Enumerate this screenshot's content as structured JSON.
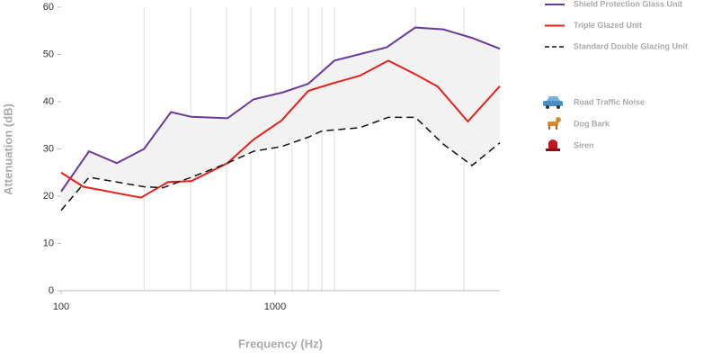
{
  "chart_data": {
    "type": "line",
    "xlabel": "Frequency (Hz)",
    "ylabel": "Attenuation (dB)",
    "xscale": "log",
    "xlim": [
      100,
      11220
    ],
    "xticks": [
      100,
      1000
    ],
    "xgrid": [
      244,
      403,
      593,
      770,
      1000,
      1200,
      1430,
      1653,
      1890,
      4520,
      7630
    ],
    "ylim": [
      0,
      60
    ],
    "yticks": [
      0,
      10,
      20,
      30,
      40,
      50,
      60
    ],
    "band_between": [
      0,
      2
    ],
    "band_color": "#f2f2f3",
    "series": [
      {
        "name": "Shield Protection Glass Unit",
        "color": "#6b3a98",
        "dash": false,
        "x": [
          100,
          135,
          182,
          244,
          326,
          406,
          599,
          793,
          1091,
          1430,
          1893,
          3320,
          4520,
          6110,
          8320,
          11220
        ],
        "values": [
          21,
          29.5,
          27,
          30,
          37.8,
          36.8,
          36.5,
          40.5,
          42,
          43.8,
          48.7,
          51.5,
          55.7,
          55.3,
          53.5,
          51.2
        ]
      },
      {
        "name": "Triple Glazed Unit",
        "color": "#e2231a",
        "dash": false,
        "x": [
          100,
          127,
          236,
          316,
          406,
          599,
          793,
          1070,
          1430,
          1893,
          2490,
          3380,
          4520,
          5750,
          7950,
          11220
        ],
        "values": [
          25,
          22,
          19.7,
          23,
          23.2,
          27,
          32,
          36,
          42.3,
          44,
          45.5,
          48.7,
          45.8,
          43.2,
          35.8,
          43.3
        ]
      },
      {
        "name": "Standard Double Glazing Unit",
        "color": "#111111",
        "dash": true,
        "x": [
          100,
          135,
          182,
          244,
          300,
          406,
          599,
          793,
          1070,
          1430,
          1653,
          2490,
          3380,
          4520,
          6110,
          8320,
          11220
        ],
        "values": [
          17,
          24,
          23,
          22,
          21.8,
          24,
          27,
          29.5,
          30.5,
          32.5,
          33.8,
          34.5,
          36.7,
          36.7,
          31,
          26.5,
          31.3
        ]
      }
    ],
    "sources": [
      "Road Traffic Noise",
      "Dog Bark",
      "Siren"
    ]
  }
}
